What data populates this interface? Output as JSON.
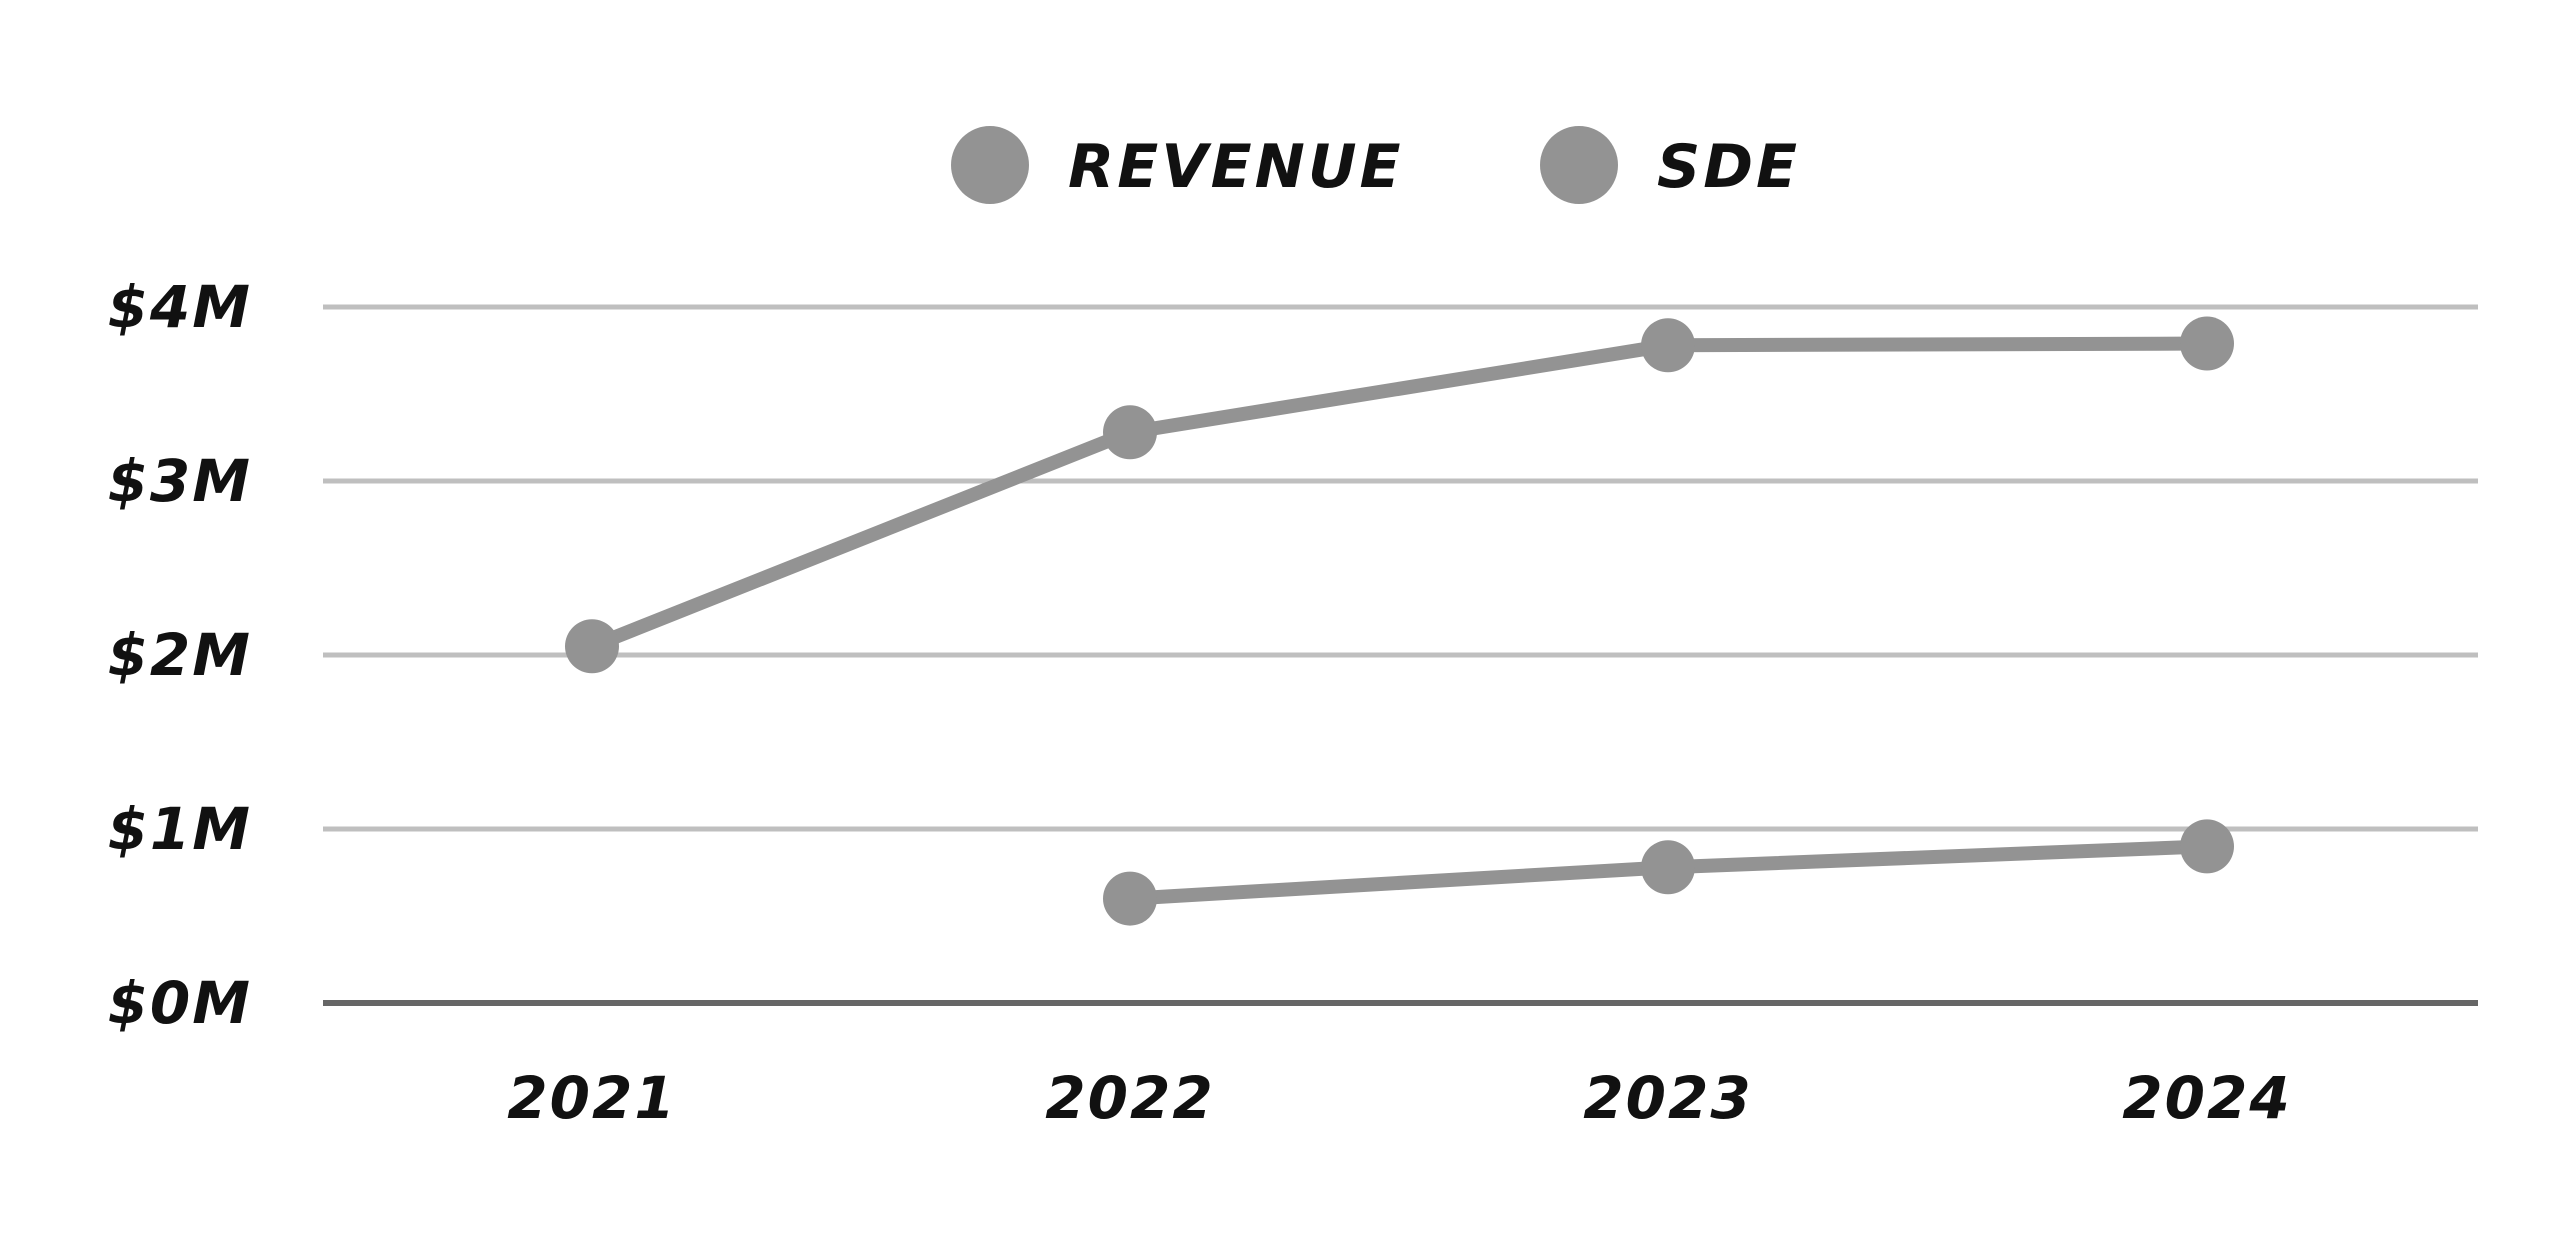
{
  "chart_data": {
    "type": "line",
    "title": "",
    "xlabel": "",
    "ylabel": "",
    "categories": [
      "2021",
      "2022",
      "2023",
      "2024"
    ],
    "y_ticks": [
      "$0M",
      "$1M",
      "$2M",
      "$3M",
      "$4M"
    ],
    "y_tick_values": [
      0,
      1,
      2,
      3,
      4
    ],
    "ylim": [
      0,
      4
    ],
    "grid": true,
    "legend_position": "top-center",
    "series": [
      {
        "name": "REVENUE",
        "values": [
          2.05,
          3.28,
          3.78,
          3.79
        ],
        "color": "#939393"
      },
      {
        "name": "SDE",
        "values": [
          null,
          0.6,
          0.78,
          0.9
        ],
        "color": "#939393"
      }
    ],
    "gridline_color": "#bfbfbf",
    "baseline_color": "#666666"
  }
}
